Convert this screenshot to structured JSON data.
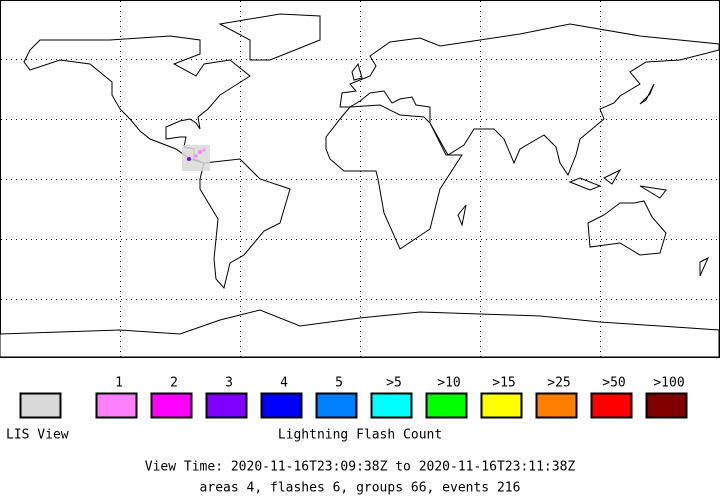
{
  "legend": {
    "lis_view": {
      "label": "LIS View",
      "color": "#d9d9d9"
    },
    "title": "Lightning Flash Count",
    "items": [
      {
        "label": "1",
        "color": "#ff80ff"
      },
      {
        "label": "2",
        "color": "#ff00ff"
      },
      {
        "label": "3",
        "color": "#8000ff"
      },
      {
        "label": "4",
        "color": "#0000ff"
      },
      {
        "label": "5",
        "color": "#0080ff"
      },
      {
        "label": ">5",
        "color": "#00ffff"
      },
      {
        "label": ">10",
        "color": "#00ff00"
      },
      {
        "label": ">15",
        "color": "#ffff00"
      },
      {
        "label": ">25",
        "color": "#ff8000"
      },
      {
        "label": ">50",
        "color": "#ff0000"
      },
      {
        "label": ">100",
        "color": "#800000"
      }
    ]
  },
  "view_time": "View Time: 2020-11-16T23:09:38Z to 2020-11-16T23:11:38Z",
  "summary": "areas 4, flashes 6, groups 66, events 216"
}
